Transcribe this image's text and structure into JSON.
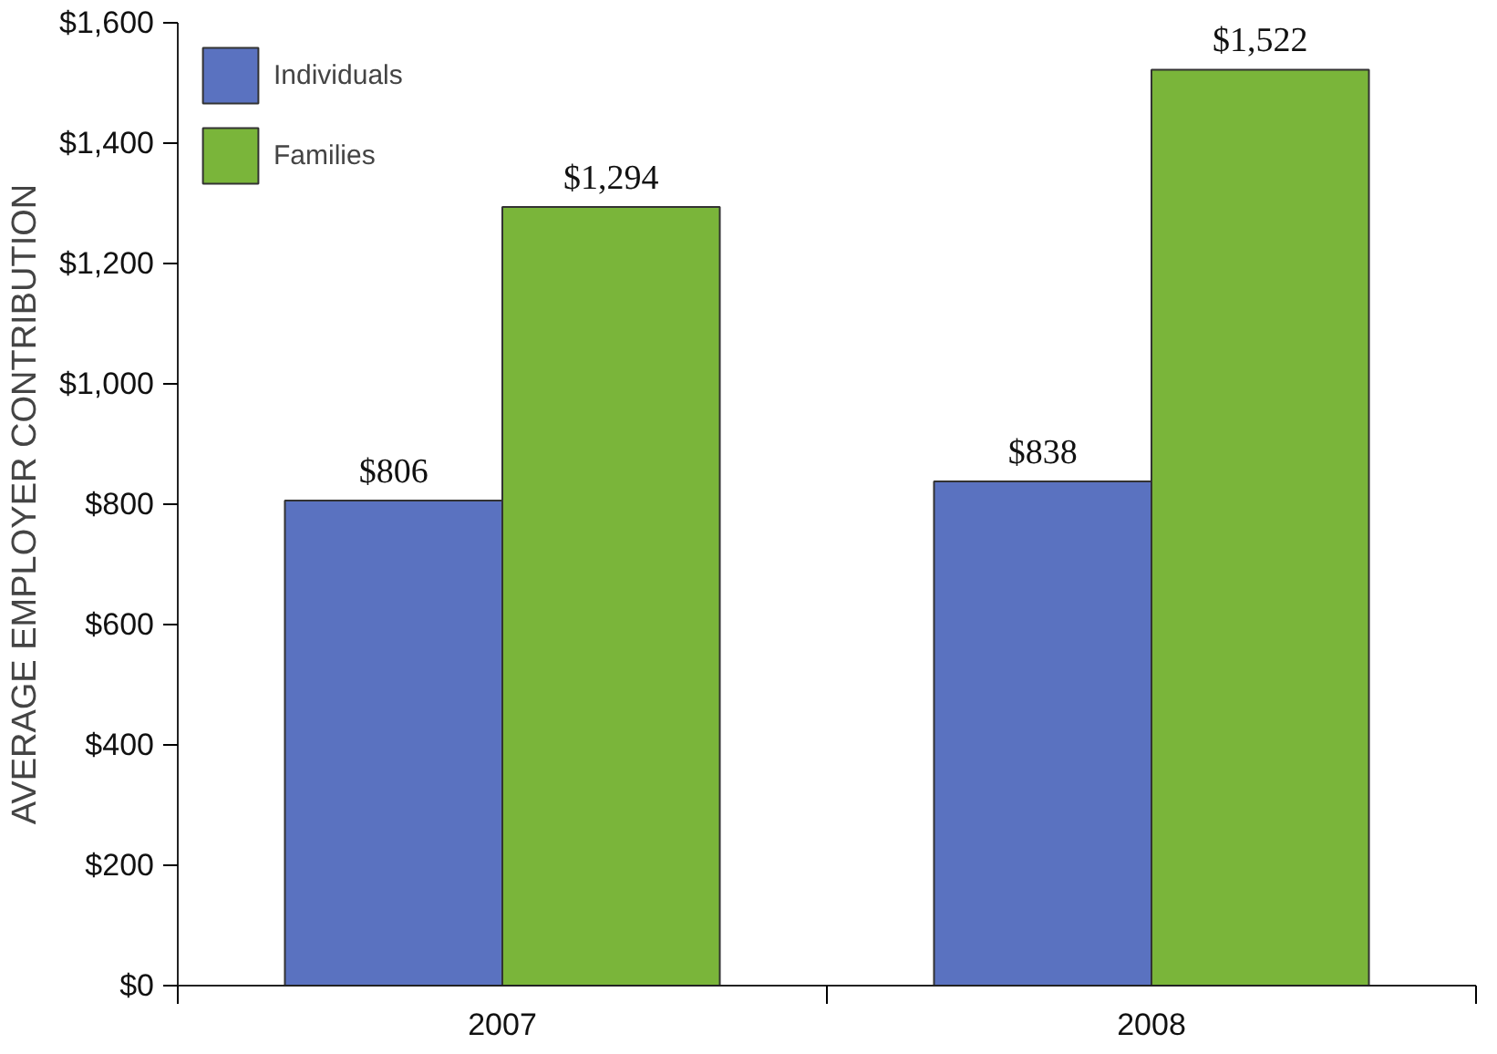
{
  "chart_data": {
    "type": "bar",
    "ylabel": "AVERAGE EMPLOYER CONTRIBUTION",
    "categories": [
      "2007",
      "2008"
    ],
    "series": [
      {
        "name": "Individuals",
        "color": "#5a72c0",
        "values": [
          806,
          838
        ]
      },
      {
        "name": "Families",
        "color": "#7ab53a",
        "values": [
          1294,
          1522
        ]
      }
    ],
    "ylim": [
      0,
      1600
    ],
    "yticks": [
      {
        "value": 0,
        "label": "$0"
      },
      {
        "value": 200,
        "label": "$200"
      },
      {
        "value": 400,
        "label": "$400"
      },
      {
        "value": 600,
        "label": "$600"
      },
      {
        "value": 800,
        "label": "$800"
      },
      {
        "value": 1000,
        "label": "$1,000"
      },
      {
        "value": 1200,
        "label": "$1,200"
      },
      {
        "value": 1400,
        "label": "$1,400"
      },
      {
        "value": 1600,
        "label": "$1,600"
      }
    ],
    "value_labels": [
      [
        "$806",
        "$838"
      ],
      [
        "$1,294",
        "$1,522"
      ]
    ],
    "grid": false,
    "legend": "top left"
  }
}
